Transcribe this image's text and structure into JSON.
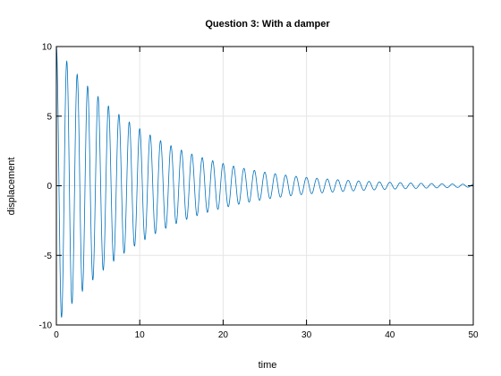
{
  "chart_data": {
    "type": "line",
    "title": "Question 3: With a damper",
    "xlabel": "time",
    "ylabel": "displacement",
    "xlim": [
      0,
      50
    ],
    "ylim": [
      -10,
      10
    ],
    "x_ticks": [
      0,
      10,
      20,
      30,
      40,
      50
    ],
    "y_ticks": [
      -10,
      -5,
      0,
      5,
      10
    ],
    "x_tick_labels": [
      "0",
      "10",
      "20",
      "30",
      "40",
      "50"
    ],
    "y_tick_labels": [
      "-10",
      "-5",
      "0",
      "5",
      "10"
    ],
    "grid": true,
    "series": [
      {
        "color": "#0072bd",
        "model": "damped cosine",
        "initial_amplitude": 10,
        "peak_amplitude_by_time": [
          [
            0,
            10
          ],
          [
            10,
            4.1
          ],
          [
            20,
            1.6
          ],
          [
            30,
            0.6
          ],
          [
            40,
            0.25
          ],
          [
            50,
            0.1
          ]
        ],
        "oscillation_period": 1.25,
        "points": []
      }
    ]
  }
}
